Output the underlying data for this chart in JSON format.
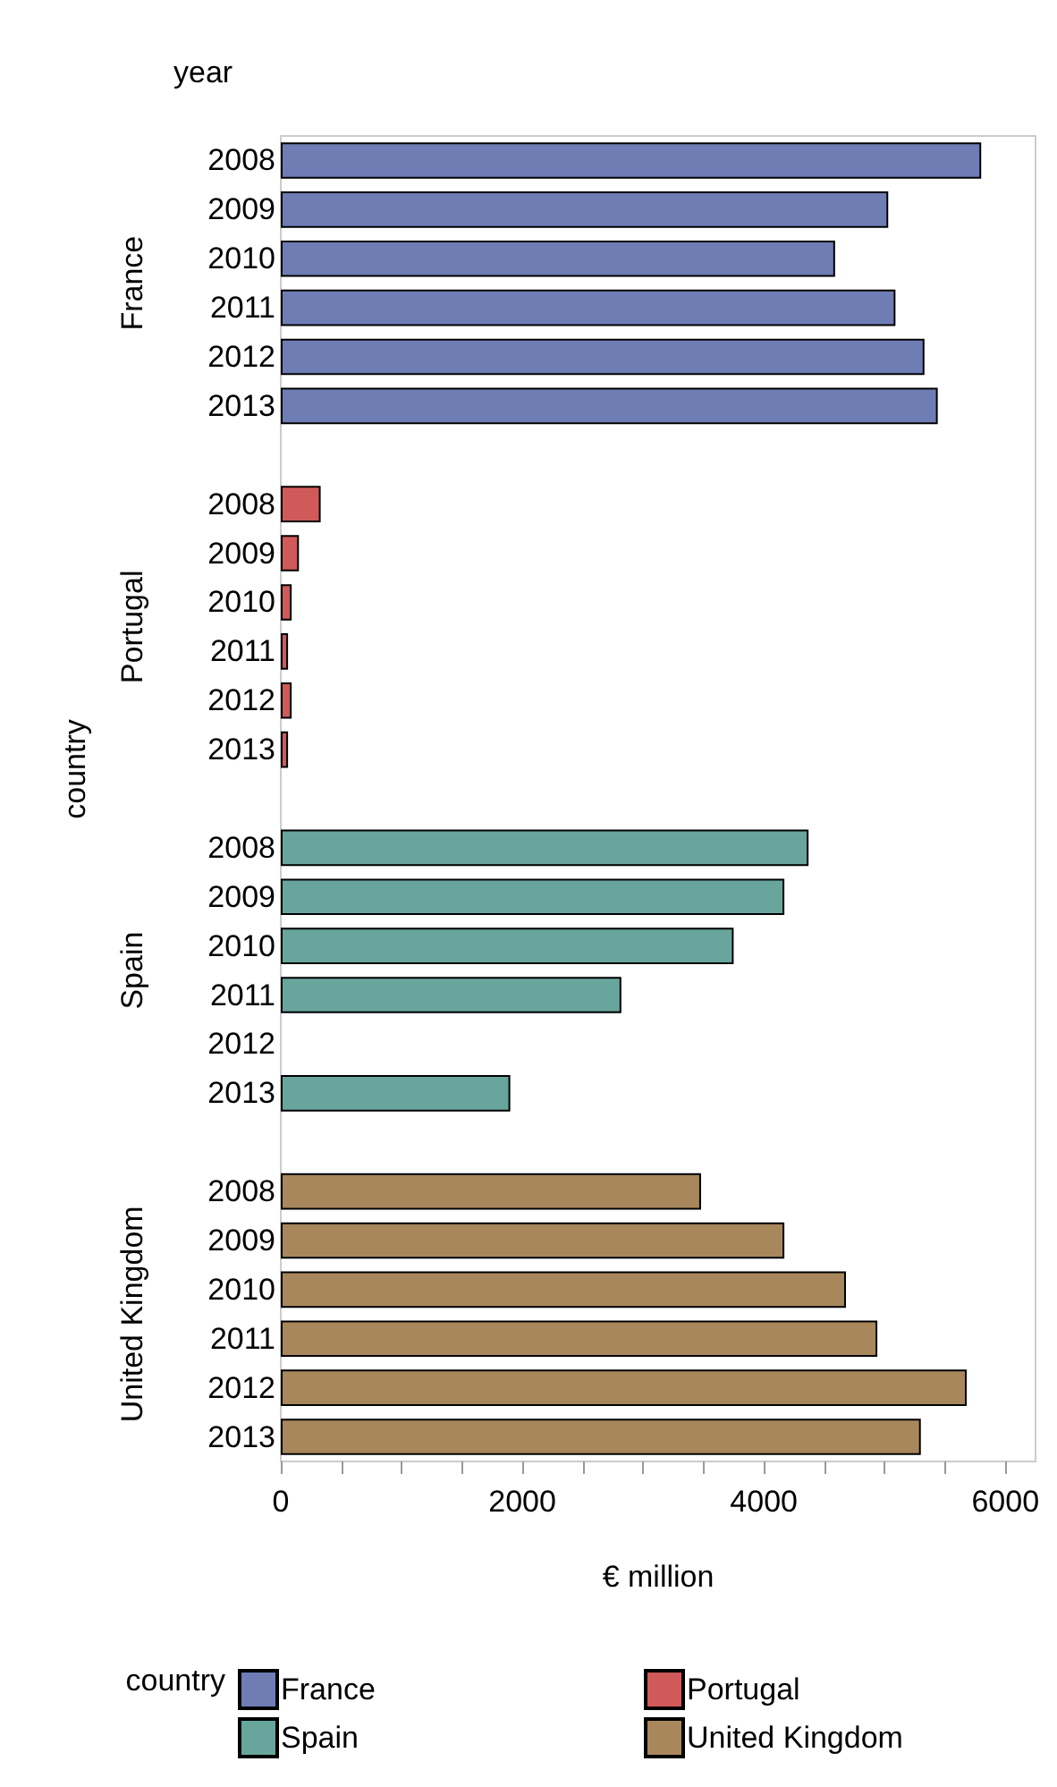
{
  "chart_data": {
    "type": "bar",
    "orientation": "horizontal",
    "xlabel": "€ million",
    "ylabel": "country",
    "legend_title": "country",
    "annotations": [
      "year"
    ],
    "categories": [
      "2008",
      "2009",
      "2010",
      "2011",
      "2012",
      "2013",
      null,
      "2008",
      "2009",
      "2010",
      "2011",
      "2012",
      "2013",
      null,
      "2008",
      "2009",
      "2010",
      "2011",
      "2012",
      "2013",
      null,
      "2008",
      "2009",
      "2010",
      "2011",
      "2012",
      "2013"
    ],
    "series": [
      {
        "name": "France",
        "color": "#6f7db5",
        "values": [
          5800,
          5030,
          4590,
          5090,
          5330,
          5440,
          null,
          null,
          null,
          null,
          null,
          null,
          null,
          null,
          null,
          null,
          null,
          null,
          null,
          null,
          null,
          null,
          null,
          null,
          null,
          null,
          null
        ]
      },
      {
        "name": "Portugal",
        "color": "#d05a5a",
        "values": [
          null,
          null,
          null,
          null,
          null,
          null,
          null,
          330,
          150,
          90,
          60,
          90,
          60,
          null,
          null,
          null,
          null,
          null,
          null,
          null,
          null,
          null,
          null,
          null,
          null,
          null,
          null
        ]
      },
      {
        "name": "Spain",
        "color": "#68a59d",
        "values": [
          null,
          null,
          null,
          null,
          null,
          null,
          null,
          null,
          null,
          null,
          null,
          null,
          null,
          null,
          4370,
          4170,
          3750,
          2820,
          null,
          1900,
          null,
          null,
          null,
          null,
          null,
          null,
          null
        ]
      },
      {
        "name": "United Kingdom",
        "color": "#a8875c",
        "values": [
          null,
          null,
          null,
          null,
          null,
          null,
          null,
          null,
          null,
          null,
          null,
          null,
          null,
          null,
          null,
          null,
          null,
          null,
          null,
          null,
          null,
          3480,
          4170,
          4680,
          4940,
          5680,
          5300
        ]
      }
    ],
    "xlim": [
      0,
      6250
    ],
    "xticks": [
      0,
      {
        "value": 500,
        "label": null
      },
      {
        "value": 1000,
        "label": null
      },
      {
        "value": 1500,
        "label": null
      },
      2000,
      {
        "value": 2500,
        "label": null
      },
      {
        "value": 3000,
        "label": null
      },
      {
        "value": 3500,
        "label": null
      },
      4000,
      {
        "value": 4500,
        "label": null
      },
      {
        "value": 5000,
        "label": null
      },
      {
        "value": 5500,
        "label": null
      },
      6000
    ],
    "grid": false,
    "legend": "bottom"
  }
}
